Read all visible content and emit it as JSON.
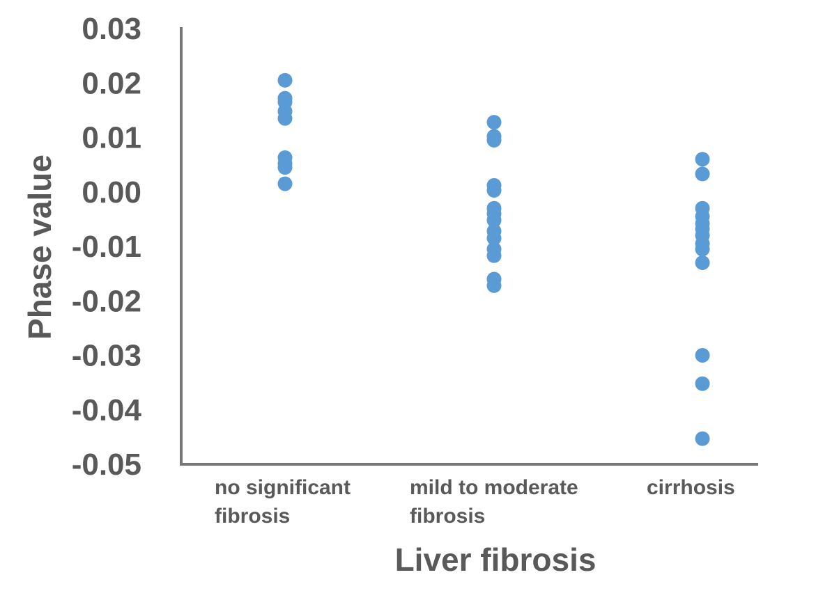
{
  "chart_data": {
    "type": "scatter",
    "xlabel": "Liver fibrosis",
    "ylabel": "Phase value",
    "ylim": [
      -0.05,
      0.03
    ],
    "yticks": [
      "0.03",
      "0.02",
      "0.01",
      "0.00",
      "-0.01",
      "-0.02",
      "-0.03",
      "-0.04",
      "-0.05"
    ],
    "categories": [
      [
        "no significant",
        "fibrosis"
      ],
      [
        "mild to moderate",
        "fibrosis"
      ],
      [
        "cirrhosis"
      ]
    ],
    "series": [
      {
        "values": [
          [
            0.0205,
            0.0172,
            0.0165,
            0.0148,
            0.0135,
            0.0063,
            0.0052,
            0.0045,
            0.0015
          ],
          [
            0.0128,
            0.0102,
            0.0095,
            0.0012,
            0.0003,
            -0.003,
            -0.004,
            -0.0052,
            -0.0072,
            -0.0085,
            -0.0105,
            -0.0117,
            -0.016,
            -0.0172
          ],
          [
            0.006,
            0.0033,
            -0.003,
            -0.0045,
            -0.0058,
            -0.0068,
            -0.008,
            -0.0095,
            -0.0105,
            -0.013,
            -0.03,
            -0.0352,
            -0.0453
          ]
        ],
        "color": "#5b9bd5"
      }
    ],
    "grid": false,
    "axis_color": "#767676",
    "text_color": "#595959"
  }
}
